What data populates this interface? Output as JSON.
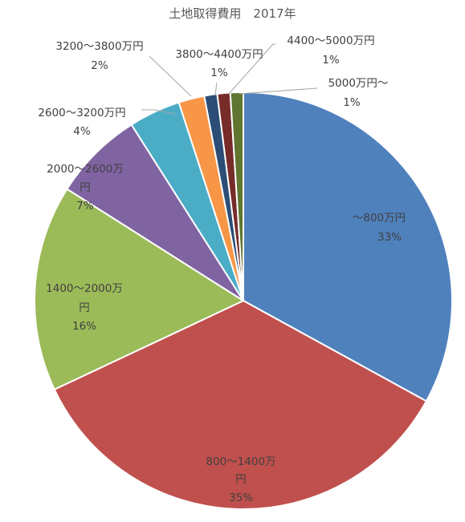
{
  "chart_data": {
    "type": "pie",
    "title": "土地取得費用　2017年",
    "slices": [
      {
        "label": "～800万円",
        "percent_label": "33%",
        "value": 33,
        "color": "#4f81bd"
      },
      {
        "label": "800～1400万円",
        "percent_label": "35%",
        "value": 35,
        "color": "#c0504d"
      },
      {
        "label": "1400～2000万円",
        "percent_label": "16%",
        "value": 16,
        "color": "#9bbb59"
      },
      {
        "label": "2000～2600万円",
        "percent_label": "7%",
        "value": 7,
        "color": "#8064a2"
      },
      {
        "label": "2600～3200万円",
        "percent_label": "4%",
        "value": 4,
        "color": "#4bacc6"
      },
      {
        "label": "3200～3800万円",
        "percent_label": "2%",
        "value": 2,
        "color": "#f79646"
      },
      {
        "label": "3800～4400万円",
        "percent_label": "1%",
        "value": 1,
        "color": "#2c4d75"
      },
      {
        "label": "4400～5000万円",
        "percent_label": "1%",
        "value": 1,
        "color": "#772c2a"
      },
      {
        "label": "5000万円～",
        "percent_label": "1%",
        "value": 1,
        "color": "#5f7530"
      }
    ],
    "start_angle_deg": 0,
    "direction": "clockwise",
    "legend": "none",
    "data_labels": "category name and percentage"
  }
}
